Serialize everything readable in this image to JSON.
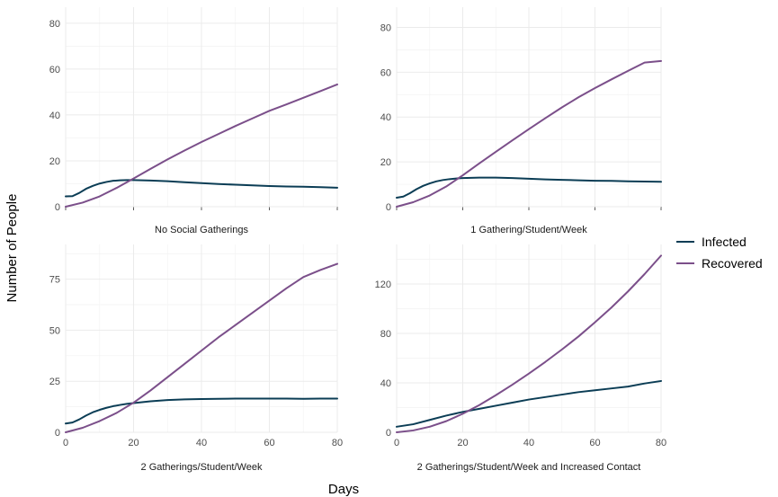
{
  "chart_data": {
    "type": "line",
    "xlabel": "Days",
    "ylabel": "Number of People",
    "legend": {
      "placement": "right",
      "entries": [
        {
          "name": "Infected",
          "color": "#0b3d55"
        },
        {
          "name": "Recovered",
          "color": "#7b4f8a"
        }
      ]
    },
    "grid": true,
    "panels": [
      {
        "title": "No Social Gatherings",
        "xlim": [
          0,
          80
        ],
        "ylim": [
          0,
          87
        ],
        "xticks": [
          0,
          20,
          40,
          60,
          80
        ],
        "show_xtick_labels": false,
        "yticks": [
          0,
          20,
          40,
          60,
          80
        ],
        "series": [
          {
            "name": "Infected",
            "x": [
              0,
              2,
              4,
              6,
              8,
              10,
              12,
              14,
              16,
              18,
              20,
              25,
              30,
              35,
              40,
              45,
              50,
              55,
              60,
              65,
              70,
              75,
              80
            ],
            "y": [
              4.5,
              4.6,
              6,
              7.8,
              9.1,
              10.1,
              10.8,
              11.3,
              11.5,
              11.6,
              11.6,
              11.4,
              11.1,
              10.7,
              10.3,
              9.9,
              9.6,
              9.3,
              9.0,
              8.8,
              8.7,
              8.5,
              8.3
            ]
          },
          {
            "name": "Recovered",
            "x": [
              0,
              5,
              10,
              15,
              20,
              25,
              30,
              35,
              40,
              45,
              50,
              55,
              60,
              65,
              70,
              75,
              80
            ],
            "y": [
              0,
              1.8,
              4.5,
              8.2,
              12.3,
              16.5,
              20.6,
              24.5,
              28.2,
              31.7,
              35.2,
              38.5,
              41.8,
              44.6,
              47.5,
              50.4,
              53.3
            ]
          }
        ]
      },
      {
        "title": "1 Gathering/Student/Week",
        "xlim": [
          0,
          80
        ],
        "ylim": [
          0,
          89
        ],
        "xticks": [
          0,
          20,
          40,
          60,
          80
        ],
        "show_xtick_labels": false,
        "yticks": [
          0,
          20,
          40,
          60,
          80
        ],
        "series": [
          {
            "name": "Infected",
            "x": [
              0,
              2,
              4,
              6,
              8,
              10,
              12,
              14,
              16,
              18,
              20,
              25,
              30,
              35,
              40,
              45,
              50,
              55,
              60,
              65,
              70,
              75,
              80
            ],
            "y": [
              4.0,
              4.5,
              6,
              7.8,
              9.3,
              10.4,
              11.3,
              11.9,
              12.3,
              12.6,
              12.8,
              13.0,
              13.0,
              12.8,
              12.5,
              12.2,
              12.0,
              11.8,
              11.6,
              11.5,
              11.3,
              11.2,
              11.1
            ]
          },
          {
            "name": "Recovered",
            "x": [
              0,
              5,
              10,
              15,
              20,
              25,
              30,
              35,
              40,
              45,
              50,
              55,
              60,
              65,
              70,
              75,
              80
            ],
            "y": [
              0,
              2,
              5,
              9,
              14,
              19.3,
              24.5,
              29.6,
              34.6,
              39.5,
              44.3,
              48.8,
              52.9,
              56.8,
              60.6,
              64.3,
              65
            ]
          }
        ]
      },
      {
        "title": "2 Gatherings/Student/Week",
        "xlim": [
          0,
          80
        ],
        "ylim": [
          0,
          92
        ],
        "xticks": [
          0,
          20,
          40,
          60,
          80
        ],
        "show_xtick_labels": true,
        "yticks": [
          0,
          25,
          50,
          75
        ],
        "series": [
          {
            "name": "Infected",
            "x": [
              0,
              2,
              4,
              6,
              8,
              10,
              12,
              14,
              16,
              18,
              20,
              25,
              30,
              35,
              40,
              45,
              50,
              55,
              60,
              65,
              70,
              75,
              80
            ],
            "y": [
              4.3,
              4.8,
              6.3,
              8.2,
              9.8,
              11.0,
              12.0,
              12.8,
              13.4,
              13.9,
              14.3,
              15.2,
              15.8,
              16.1,
              16.3,
              16.4,
              16.5,
              16.5,
              16.5,
              16.5,
              16.4,
              16.5,
              16.5
            ]
          },
          {
            "name": "Recovered",
            "x": [
              0,
              5,
              10,
              15,
              20,
              25,
              30,
              35,
              40,
              45,
              50,
              55,
              60,
              65,
              70,
              75,
              80
            ],
            "y": [
              0,
              2.2,
              5.5,
              9.5,
              14.5,
              20.5,
              27,
              33.5,
              40,
              46.5,
              52.5,
              58.5,
              64.5,
              70.5,
              76,
              79.5,
              82.5
            ]
          }
        ]
      },
      {
        "title": "2 Gatherings/Student/Week and Increased Contact",
        "xlim": [
          0,
          80
        ],
        "ylim": [
          0,
          152
        ],
        "xticks": [
          0,
          20,
          40,
          60,
          80
        ],
        "show_xtick_labels": true,
        "yticks": [
          0,
          40,
          80,
          120
        ],
        "series": [
          {
            "name": "Infected",
            "x": [
              0,
              5,
              10,
              15,
              20,
              25,
              30,
              35,
              40,
              45,
              50,
              55,
              60,
              65,
              70,
              75,
              80
            ],
            "y": [
              4.5,
              6.5,
              10,
              13.5,
              16.5,
              19,
              21.5,
              24,
              26.5,
              28.5,
              30.5,
              32.5,
              34,
              35.5,
              37,
              39.5,
              41.5
            ]
          },
          {
            "name": "Recovered",
            "x": [
              0,
              5,
              10,
              15,
              20,
              25,
              30,
              35,
              40,
              45,
              50,
              55,
              60,
              65,
              70,
              75,
              80
            ],
            "y": [
              0,
              1.5,
              4.5,
              9,
              15,
              22,
              30,
              38.5,
              47.5,
              57,
              67,
              77.5,
              89,
              101,
              114,
              128,
              143
            ]
          }
        ]
      }
    ]
  }
}
